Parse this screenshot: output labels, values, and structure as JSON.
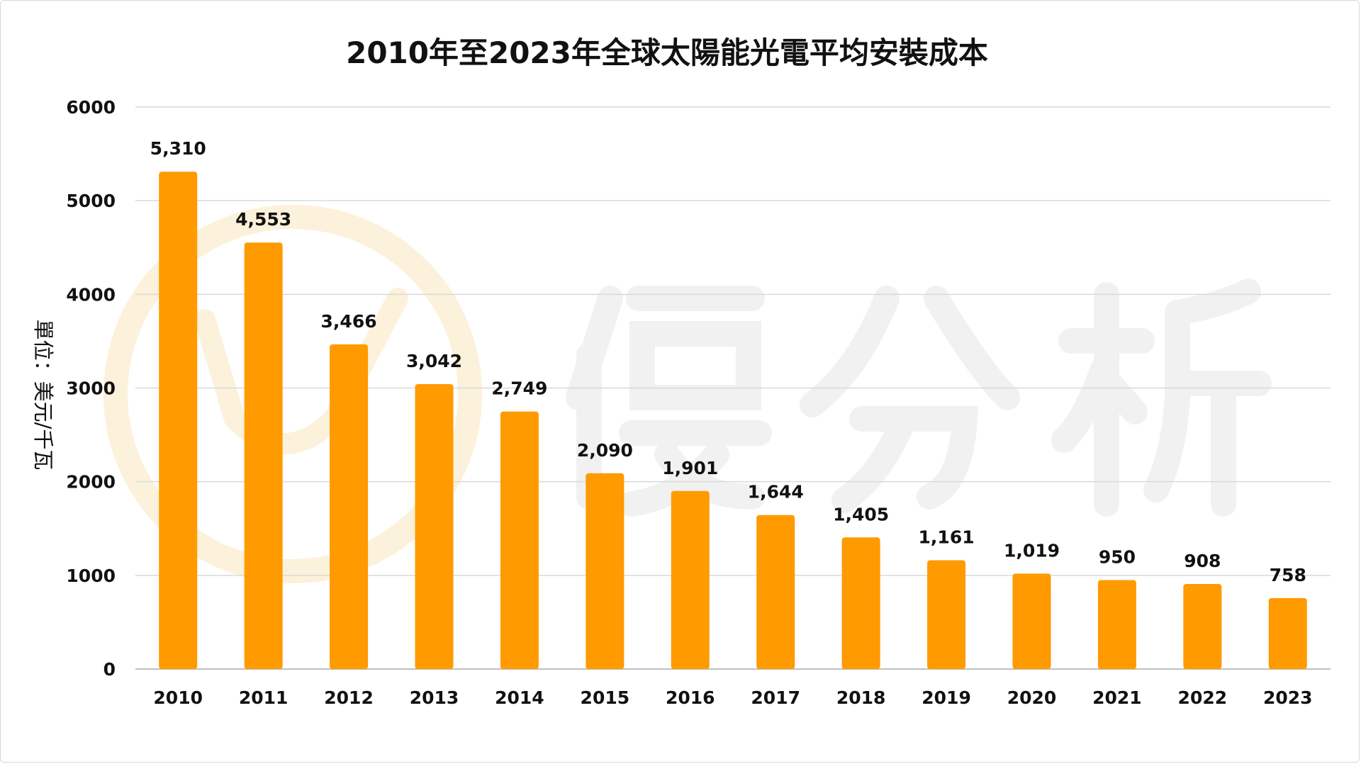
{
  "chart_data": {
    "type": "bar",
    "title": "2010年至2023年全球太陽能光電平均安裝成本",
    "ylabel": "單位：美元/千瓦",
    "xlabel": "",
    "categories": [
      "2010",
      "2011",
      "2012",
      "2013",
      "2014",
      "2015",
      "2016",
      "2017",
      "2018",
      "2019",
      "2020",
      "2021",
      "2022",
      "2023"
    ],
    "values": [
      5310,
      4553,
      3466,
      3042,
      2749,
      2090,
      1901,
      1644,
      1405,
      1161,
      1019,
      950,
      908,
      758
    ],
    "value_labels": [
      "5,310",
      "4,553",
      "3,466",
      "3,042",
      "2,749",
      "2,090",
      "1,901",
      "1,644",
      "1,405",
      "1,161",
      "1,019",
      "950",
      "908",
      "758"
    ],
    "ylim": [
      0,
      6000
    ],
    "yticks": [
      0,
      1000,
      2000,
      3000,
      4000,
      5000,
      6000
    ],
    "ytick_labels": [
      "0",
      "1000",
      "2000",
      "3000",
      "4000",
      "5000",
      "6000"
    ],
    "grid": true,
    "legend": "none",
    "bar_color": "#FF9A00",
    "watermark_color": "#FDF3DC"
  }
}
